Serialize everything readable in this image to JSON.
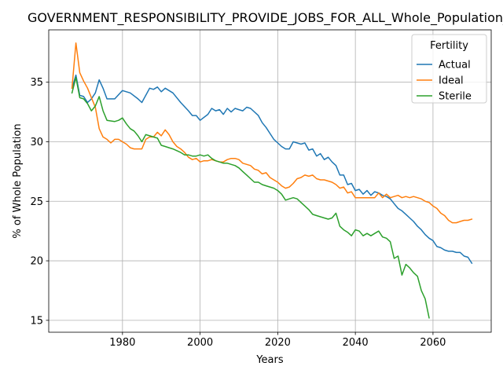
{
  "chart_data": {
    "type": "line",
    "title": "GOVERNMENT_RESPONSIBILITY_PROVIDE_JOBS_FOR_ALL_Whole_Population_Sc",
    "xlabel": "Years",
    "ylabel": "% of Whole Population",
    "xlim": [
      1961,
      2075
    ],
    "ylim": [
      14,
      39.4
    ],
    "xticks": [
      "1980",
      "2000",
      "2020",
      "2040",
      "2060"
    ],
    "yticks": [
      "15",
      "20",
      "25",
      "30",
      "35"
    ],
    "grid": true,
    "legend": {
      "title": "Fertility",
      "placement": "top-right"
    },
    "series": [
      {
        "name": "Actual",
        "color": "#1f77b4",
        "points": [
          [
            1967,
            34.5
          ],
          [
            1968,
            35.6
          ],
          [
            1969,
            33.9
          ],
          [
            1970,
            33.8
          ],
          [
            1971,
            33.3
          ],
          [
            1972,
            33.6
          ],
          [
            1973,
            34.1
          ],
          [
            1974,
            35.2
          ],
          [
            1975,
            34.5
          ],
          [
            1976,
            33.6
          ],
          [
            1978,
            33.6
          ],
          [
            1980,
            34.3
          ],
          [
            1982,
            34.1
          ],
          [
            1984,
            33.6
          ],
          [
            1985,
            33.3
          ],
          [
            1987,
            34.5
          ],
          [
            1988,
            34.4
          ],
          [
            1989,
            34.6
          ],
          [
            1990,
            34.2
          ],
          [
            1991,
            34.5
          ],
          [
            1993,
            34.1
          ],
          [
            1995,
            33.3
          ],
          [
            1997,
            32.6
          ],
          [
            1998,
            32.2
          ],
          [
            1999,
            32.2
          ],
          [
            2000,
            31.8
          ],
          [
            2002,
            32.3
          ],
          [
            2003,
            32.8
          ],
          [
            2004,
            32.6
          ],
          [
            2005,
            32.7
          ],
          [
            2006,
            32.3
          ],
          [
            2007,
            32.8
          ],
          [
            2008,
            32.5
          ],
          [
            2009,
            32.8
          ],
          [
            2010,
            32.7
          ],
          [
            2011,
            32.6
          ],
          [
            2012,
            32.9
          ],
          [
            2013,
            32.8
          ],
          [
            2015,
            32.2
          ],
          [
            2016,
            31.6
          ],
          [
            2017,
            31.2
          ],
          [
            2018,
            30.7
          ],
          [
            2019,
            30.2
          ],
          [
            2020,
            29.9
          ],
          [
            2021,
            29.6
          ],
          [
            2022,
            29.4
          ],
          [
            2023,
            29.4
          ],
          [
            2024,
            30.0
          ],
          [
            2025,
            29.9
          ],
          [
            2026,
            29.8
          ],
          [
            2027,
            29.9
          ],
          [
            2028,
            29.3
          ],
          [
            2029,
            29.4
          ],
          [
            2030,
            28.8
          ],
          [
            2031,
            29.0
          ],
          [
            2032,
            28.5
          ],
          [
            2033,
            28.7
          ],
          [
            2034,
            28.3
          ],
          [
            2035,
            28.0
          ],
          [
            2036,
            27.2
          ],
          [
            2037,
            27.2
          ],
          [
            2038,
            26.4
          ],
          [
            2039,
            26.5
          ],
          [
            2040,
            25.9
          ],
          [
            2041,
            26.0
          ],
          [
            2042,
            25.6
          ],
          [
            2043,
            25.9
          ],
          [
            2044,
            25.5
          ],
          [
            2045,
            25.8
          ],
          [
            2046,
            25.7
          ],
          [
            2047,
            25.5
          ],
          [
            2048,
            25.4
          ],
          [
            2049,
            25.2
          ],
          [
            2050,
            24.8
          ],
          [
            2051,
            24.4
          ],
          [
            2052,
            24.2
          ],
          [
            2053,
            23.9
          ],
          [
            2054,
            23.6
          ],
          [
            2055,
            23.3
          ],
          [
            2056,
            22.9
          ],
          [
            2057,
            22.6
          ],
          [
            2058,
            22.2
          ],
          [
            2059,
            21.9
          ],
          [
            2060,
            21.7
          ],
          [
            2061,
            21.2
          ],
          [
            2062,
            21.1
          ],
          [
            2063,
            20.9
          ],
          [
            2064,
            20.8
          ],
          [
            2065,
            20.8
          ],
          [
            2066,
            20.7
          ],
          [
            2067,
            20.7
          ],
          [
            2068,
            20.4
          ],
          [
            2069,
            20.3
          ],
          [
            2070,
            19.8
          ]
        ]
      },
      {
        "name": "Ideal",
        "color": "#ff7f0e",
        "points": [
          [
            1967,
            34.5
          ],
          [
            1968,
            38.3
          ],
          [
            1969,
            35.8
          ],
          [
            1970,
            35.1
          ],
          [
            1971,
            34.5
          ],
          [
            1972,
            33.7
          ],
          [
            1973,
            32.9
          ],
          [
            1974,
            31.1
          ],
          [
            1975,
            30.4
          ],
          [
            1976,
            30.2
          ],
          [
            1977,
            29.9
          ],
          [
            1978,
            30.2
          ],
          [
            1979,
            30.2
          ],
          [
            1980,
            30.0
          ],
          [
            1981,
            29.8
          ],
          [
            1982,
            29.5
          ],
          [
            1983,
            29.4
          ],
          [
            1984,
            29.4
          ],
          [
            1985,
            29.4
          ],
          [
            1986,
            30.2
          ],
          [
            1987,
            30.4
          ],
          [
            1988,
            30.4
          ],
          [
            1989,
            30.8
          ],
          [
            1990,
            30.5
          ],
          [
            1991,
            31.0
          ],
          [
            1992,
            30.6
          ],
          [
            1993,
            30.0
          ],
          [
            1994,
            29.6
          ],
          [
            1995,
            29.4
          ],
          [
            1996,
            29.1
          ],
          [
            1997,
            28.7
          ],
          [
            1998,
            28.5
          ],
          [
            1999,
            28.6
          ],
          [
            2000,
            28.3
          ],
          [
            2001,
            28.4
          ],
          [
            2002,
            28.4
          ],
          [
            2003,
            28.5
          ],
          [
            2004,
            28.4
          ],
          [
            2005,
            28.3
          ],
          [
            2006,
            28.3
          ],
          [
            2007,
            28.5
          ],
          [
            2008,
            28.6
          ],
          [
            2009,
            28.6
          ],
          [
            2010,
            28.5
          ],
          [
            2011,
            28.2
          ],
          [
            2012,
            28.1
          ],
          [
            2013,
            28.0
          ],
          [
            2014,
            27.7
          ],
          [
            2015,
            27.6
          ],
          [
            2016,
            27.3
          ],
          [
            2017,
            27.4
          ],
          [
            2018,
            27.0
          ],
          [
            2019,
            26.8
          ],
          [
            2020,
            26.6
          ],
          [
            2021,
            26.3
          ],
          [
            2022,
            26.1
          ],
          [
            2023,
            26.2
          ],
          [
            2024,
            26.5
          ],
          [
            2025,
            26.9
          ],
          [
            2026,
            27.0
          ],
          [
            2027,
            27.2
          ],
          [
            2028,
            27.1
          ],
          [
            2029,
            27.2
          ],
          [
            2030,
            26.9
          ],
          [
            2031,
            26.8
          ],
          [
            2032,
            26.8
          ],
          [
            2033,
            26.7
          ],
          [
            2034,
            26.6
          ],
          [
            2035,
            26.4
          ],
          [
            2036,
            26.1
          ],
          [
            2037,
            26.2
          ],
          [
            2038,
            25.7
          ],
          [
            2039,
            25.8
          ],
          [
            2040,
            25.3
          ],
          [
            2041,
            25.3
          ],
          [
            2042,
            25.3
          ],
          [
            2043,
            25.3
          ],
          [
            2044,
            25.3
          ],
          [
            2045,
            25.3
          ],
          [
            2046,
            25.7
          ],
          [
            2047,
            25.3
          ],
          [
            2048,
            25.6
          ],
          [
            2049,
            25.3
          ],
          [
            2050,
            25.4
          ],
          [
            2051,
            25.5
          ],
          [
            2052,
            25.3
          ],
          [
            2053,
            25.4
          ],
          [
            2054,
            25.3
          ],
          [
            2055,
            25.4
          ],
          [
            2056,
            25.3
          ],
          [
            2057,
            25.2
          ],
          [
            2058,
            25.0
          ],
          [
            2059,
            24.9
          ],
          [
            2060,
            24.6
          ],
          [
            2061,
            24.4
          ],
          [
            2062,
            24.0
          ],
          [
            2063,
            23.8
          ],
          [
            2064,
            23.4
          ],
          [
            2065,
            23.2
          ],
          [
            2066,
            23.2
          ],
          [
            2067,
            23.3
          ],
          [
            2068,
            23.4
          ],
          [
            2069,
            23.4
          ],
          [
            2070,
            23.5
          ]
        ]
      },
      {
        "name": "Sterile",
        "color": "#2ca02c",
        "points": [
          [
            1967,
            34.1
          ],
          [
            1968,
            35.4
          ],
          [
            1969,
            33.7
          ],
          [
            1970,
            33.6
          ],
          [
            1971,
            33.2
          ],
          [
            1972,
            32.6
          ],
          [
            1973,
            33.0
          ],
          [
            1974,
            33.8
          ],
          [
            1975,
            32.6
          ],
          [
            1976,
            31.8
          ],
          [
            1978,
            31.7
          ],
          [
            1979,
            31.8
          ],
          [
            1980,
            32.0
          ],
          [
            1981,
            31.5
          ],
          [
            1982,
            31.1
          ],
          [
            1983,
            30.9
          ],
          [
            1984,
            30.5
          ],
          [
            1985,
            30.0
          ],
          [
            1986,
            30.6
          ],
          [
            1988,
            30.4
          ],
          [
            1989,
            30.3
          ],
          [
            1990,
            29.7
          ],
          [
            1991,
            29.6
          ],
          [
            1992,
            29.5
          ],
          [
            1993,
            29.4
          ],
          [
            1995,
            29.1
          ],
          [
            1996,
            28.9
          ],
          [
            1997,
            28.9
          ],
          [
            1998,
            28.8
          ],
          [
            1999,
            28.8
          ],
          [
            2000,
            28.9
          ],
          [
            2001,
            28.8
          ],
          [
            2002,
            28.9
          ],
          [
            2003,
            28.6
          ],
          [
            2004,
            28.4
          ],
          [
            2005,
            28.3
          ],
          [
            2006,
            28.2
          ],
          [
            2007,
            28.2
          ],
          [
            2008,
            28.1
          ],
          [
            2009,
            28.0
          ],
          [
            2010,
            27.8
          ],
          [
            2011,
            27.5
          ],
          [
            2012,
            27.2
          ],
          [
            2013,
            26.9
          ],
          [
            2014,
            26.6
          ],
          [
            2015,
            26.6
          ],
          [
            2016,
            26.4
          ],
          [
            2017,
            26.3
          ],
          [
            2018,
            26.2
          ],
          [
            2019,
            26.1
          ],
          [
            2020,
            25.9
          ],
          [
            2021,
            25.6
          ],
          [
            2022,
            25.1
          ],
          [
            2023,
            25.2
          ],
          [
            2024,
            25.3
          ],
          [
            2025,
            25.2
          ],
          [
            2026,
            24.9
          ],
          [
            2027,
            24.6
          ],
          [
            2028,
            24.3
          ],
          [
            2029,
            23.9
          ],
          [
            2030,
            23.8
          ],
          [
            2031,
            23.7
          ],
          [
            2032,
            23.6
          ],
          [
            2033,
            23.5
          ],
          [
            2034,
            23.6
          ],
          [
            2035,
            24.0
          ],
          [
            2036,
            22.9
          ],
          [
            2037,
            22.6
          ],
          [
            2038,
            22.4
          ],
          [
            2039,
            22.1
          ],
          [
            2040,
            22.6
          ],
          [
            2041,
            22.5
          ],
          [
            2042,
            22.1
          ],
          [
            2043,
            22.3
          ],
          [
            2044,
            22.1
          ],
          [
            2045,
            22.3
          ],
          [
            2046,
            22.5
          ],
          [
            2047,
            22.0
          ],
          [
            2048,
            21.9
          ],
          [
            2049,
            21.6
          ],
          [
            2050,
            20.2
          ],
          [
            2051,
            20.4
          ],
          [
            2052,
            18.8
          ],
          [
            2053,
            19.7
          ],
          [
            2054,
            19.4
          ],
          [
            2055,
            19.0
          ],
          [
            2056,
            18.7
          ],
          [
            2057,
            17.5
          ],
          [
            2058,
            16.8
          ],
          [
            2059,
            15.2
          ]
        ]
      }
    ]
  }
}
